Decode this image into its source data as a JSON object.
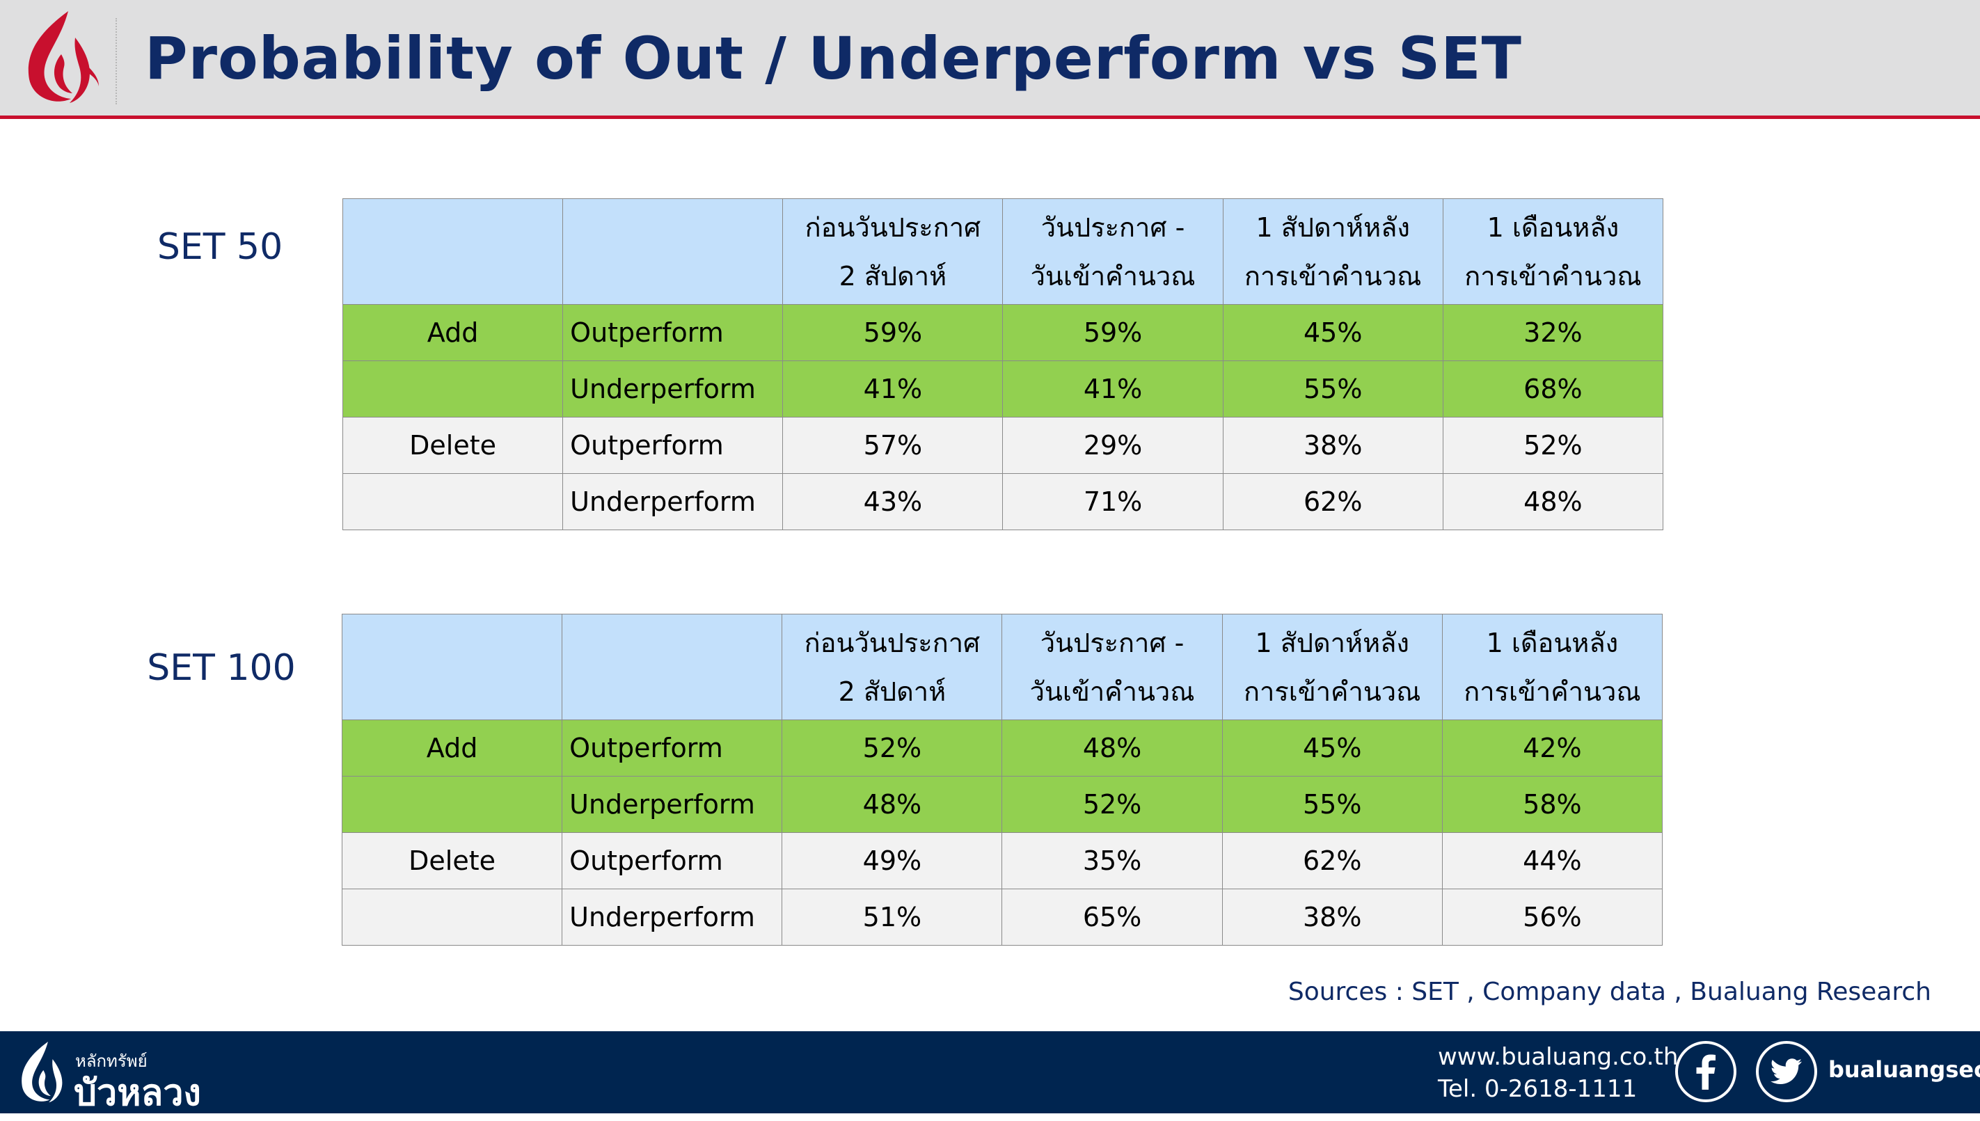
{
  "header": {
    "title": "Probability of Out / Underperform vs SET"
  },
  "columns": [
    {
      "line1": "ก่อนวันประกาศ",
      "line2": "2 สัปดาห์"
    },
    {
      "line1": "วันประกาศ -",
      "line2": "วันเข้าคำนวณ"
    },
    {
      "line1": "1 สัปดาห์หลัง",
      "line2": "การเข้าคำนวณ"
    },
    {
      "line1": "1 เดือนหลัง",
      "line2": "การเข้าคำนวณ"
    }
  ],
  "tables": [
    {
      "label": "SET 50",
      "rows": [
        {
          "group": "Add",
          "metric": "Outperform",
          "values": [
            "59%",
            "59%",
            "45%",
            "32%"
          ]
        },
        {
          "group": "",
          "metric": "Underperform",
          "values": [
            "41%",
            "41%",
            "55%",
            "68%"
          ]
        },
        {
          "group": "Delete",
          "metric": "Outperform",
          "values": [
            "57%",
            "29%",
            "38%",
            "52%"
          ]
        },
        {
          "group": "",
          "metric": "Underperform",
          "values": [
            "43%",
            "71%",
            "62%",
            "48%"
          ]
        }
      ]
    },
    {
      "label": "SET 100",
      "rows": [
        {
          "group": "Add",
          "metric": "Outperform",
          "values": [
            "52%",
            "48%",
            "45%",
            "42%"
          ]
        },
        {
          "group": "",
          "metric": "Underperform",
          "values": [
            "48%",
            "52%",
            "55%",
            "58%"
          ]
        },
        {
          "group": "Delete",
          "metric": "Outperform",
          "values": [
            "49%",
            "35%",
            "62%",
            "44%"
          ]
        },
        {
          "group": "",
          "metric": "Underperform",
          "values": [
            "51%",
            "65%",
            "38%",
            "56%"
          ]
        }
      ]
    }
  ],
  "sources": "Sources : SET , Company data , Bualuang Research",
  "footer": {
    "brand_small": "หลักทรัพย์",
    "brand_big": "บัวหลวง",
    "website": "www.bualuang.co.th",
    "phone": "Tel. 0-2618-1111",
    "social_handle": "bualuangsec"
  },
  "colors": {
    "title": "#0f2a66",
    "header_bg": "#dfdfe0",
    "accent_red": "#c8102e",
    "table_header_bg": "#c3e0fb",
    "add_row_bg": "#92d050",
    "delete_row_bg": "#f2f2f2",
    "footer_bg": "#002550"
  },
  "icons": {
    "logo": "lotus-flame-logo",
    "facebook": "facebook-icon",
    "twitter": "twitter-icon"
  }
}
